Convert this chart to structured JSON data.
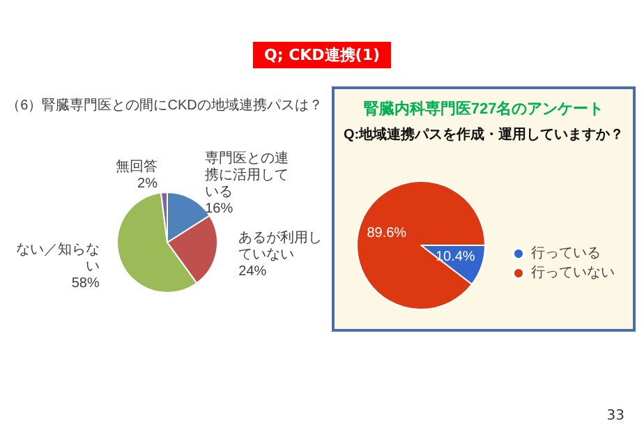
{
  "chart_data": [
    {
      "type": "pie",
      "title": "（6）腎臓専門医との間にCKDの地域連携パスは？",
      "categories": [
        "専門医との連携に活用している",
        "あるが利用していない",
        "ない／知らない",
        "無回答"
      ],
      "values": [
        16,
        24,
        58,
        2
      ],
      "colors": [
        "#4f81bd",
        "#c0504d",
        "#9bbb59",
        "#8064a2"
      ],
      "value_labels": [
        "16%",
        "24%",
        "58%",
        "2%"
      ],
      "annotations": [
        "Q; CKD連携(1)"
      ]
    },
    {
      "type": "pie",
      "title": "腎臓内科専門医727名のアンケート",
      "subtitle": "Q:地域連携パスを作成・運用していますか？",
      "categories": [
        "行っている",
        "行っていない"
      ],
      "values": [
        10.4,
        89.6
      ],
      "colors": [
        "#3366cc",
        "#dc3912"
      ],
      "value_labels": [
        "10.4%",
        "89.6%"
      ],
      "legend": "bottom right",
      "annotations": [
        "33"
      ]
    }
  ]
}
